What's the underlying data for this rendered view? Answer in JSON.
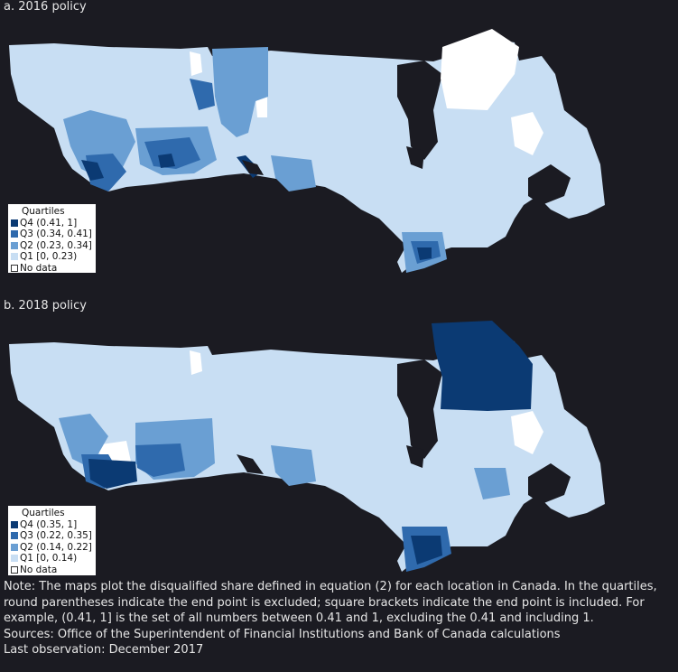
{
  "panels": [
    {
      "title": "a. 2016 policy",
      "legend": {
        "title": "Quartiles",
        "items": [
          {
            "label": "Q4 (0.41, 1]",
            "color": "#0b3a73"
          },
          {
            "label": "Q3 (0.34, 0.41]",
            "color": "#2f6aad"
          },
          {
            "label": "Q2 (0.23, 0.34]",
            "color": "#6a9fd3"
          },
          {
            "label": "Q1 [0, 0.23)",
            "color": "#c8def3"
          },
          {
            "label": "No data",
            "color": "#ffffff"
          }
        ]
      }
    },
    {
      "title": "b. 2018 policy",
      "legend": {
        "title": "Quartiles",
        "items": [
          {
            "label": "Q4 (0.35, 1]",
            "color": "#0b3a73"
          },
          {
            "label": "Q3 (0.22, 0.35]",
            "color": "#2f6aad"
          },
          {
            "label": "Q2 (0.14, 0.22]",
            "color": "#6a9fd3"
          },
          {
            "label": "Q1 [0, 0.14)",
            "color": "#c8def3"
          },
          {
            "label": "No data",
            "color": "#ffffff"
          }
        ]
      }
    }
  ],
  "chart_data": [
    {
      "type": "choropleth",
      "title": "a. 2016 policy",
      "legend_title": "Quartiles",
      "legend_placement": "bottom-left",
      "classes": [
        "Q4 (0.41, 1]",
        "Q3 (0.34, 0.41]",
        "Q2 (0.23, 0.34]",
        "Q1 [0, 0.23)",
        "No data"
      ],
      "breaks": [
        0,
        0.23,
        0.34,
        0.41,
        1
      ]
    },
    {
      "type": "choropleth",
      "title": "b. 2018 policy",
      "legend_title": "Quartiles",
      "legend_placement": "bottom-left",
      "classes": [
        "Q4 (0.35, 1]",
        "Q3 (0.22, 0.35]",
        "Q2 (0.14, 0.22]",
        "Q1 [0, 0.14)",
        "No data"
      ],
      "breaks": [
        0,
        0.14,
        0.22,
        0.35,
        1
      ]
    }
  ],
  "colors": {
    "background": "#1b1b22",
    "q4": "#0b3a73",
    "q3": "#2f6aad",
    "q2": "#6a9fd3",
    "q1": "#c8def3",
    "no_data": "#ffffff"
  },
  "notes": {
    "note": "Note: The maps plot the disqualified share defined in equation (2) for each location in Canada. In the quartiles, round parentheses indicate the end point is excluded; square brackets indicate the end point is included. For example, (0.41, 1] is the set of all numbers between 0.41 and 1, excluding the 0.41 and including 1.",
    "sources": "Sources: Office of the Superintendent of Financial Institutions and Bank of Canada calculations",
    "last_observation": "Last observation: December 2017"
  }
}
